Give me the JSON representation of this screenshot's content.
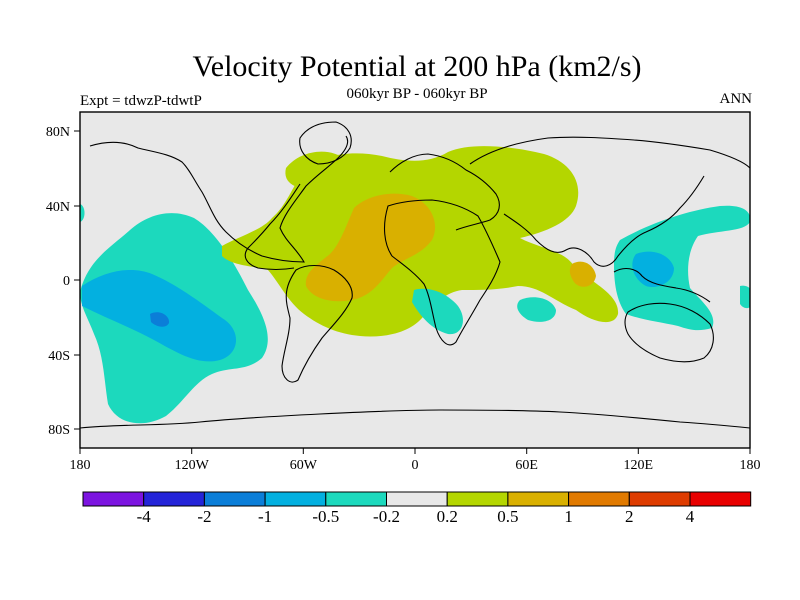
{
  "title": "Velocity Potential at 200 hPa (km2/s)",
  "subtitle": "060kyr BP - 060kyr BP",
  "left_label": "Expt = tdwzP-tdwtP",
  "right_label": "ANN",
  "axes": {
    "y_ticks": [
      "80N",
      "40N",
      "0",
      "40S",
      "80S"
    ],
    "x_ticks": [
      "180",
      "120W",
      "60W",
      "0",
      "60E",
      "120E",
      "180"
    ]
  },
  "colorbar": {
    "colors": [
      "#7c14e0",
      "#2424d8",
      "#0b7ed8",
      "#03b0e0",
      "#1cd9bd",
      "#e8e8e8",
      "#b4d600",
      "#d9b000",
      "#e17a00",
      "#de3c00",
      "#e80000"
    ],
    "labels": [
      "-4",
      "-2",
      "-1",
      "-0.5",
      "-0.2",
      "0.2",
      "0.5",
      "1",
      "2",
      "4"
    ]
  },
  "map": {
    "ocean_fill": "#e8e8e8",
    "coast_color": "#000000",
    "features": [
      {
        "name": "pacific-negative-cyan",
        "level": "-0.5 to -0.2",
        "color": "#1cd9bd"
      },
      {
        "name": "pacific-negative-blue",
        "level": "-1 to -0.5",
        "color": "#03b0e0"
      },
      {
        "name": "pacific-negative-core",
        "level": "-2 to -1",
        "color": "#0b7ed8"
      },
      {
        "name": "atlantic-africa-positive-green",
        "level": "0.2 to 0.5",
        "color": "#b4d600"
      },
      {
        "name": "atlantic-positive-orange",
        "level": "0.5 to 1",
        "color": "#d9b000"
      },
      {
        "name": "west-pacific-negative-cyan",
        "level": "-0.5 to -0.2",
        "color": "#1cd9bd"
      },
      {
        "name": "west-pacific-negative-blue",
        "level": "-1 to -0.5",
        "color": "#03b0e0"
      }
    ]
  }
}
